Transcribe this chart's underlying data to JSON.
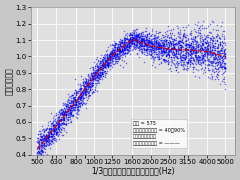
{
  "xlabel": "1/3オクターバンド中心周波数(Hz)",
  "ylabel": "冒管法補正率",
  "freqs": [
    500,
    630,
    800,
    1000,
    1250,
    1600,
    2000,
    2500,
    3150,
    4000,
    5000
  ],
  "mean_line": [
    0.435,
    0.575,
    0.725,
    0.875,
    1.005,
    1.105,
    1.065,
    1.045,
    1.04,
    1.03,
    1.0
  ],
  "spread_low": [
    0.04,
    0.04,
    0.04,
    0.04,
    0.035,
    0.03,
    0.04,
    0.05,
    0.06,
    0.07,
    0.08
  ],
  "spread_high": [
    0.04,
    0.04,
    0.04,
    0.04,
    0.035,
    0.03,
    0.04,
    0.05,
    0.06,
    0.07,
    0.08
  ],
  "ylim": [
    0.4,
    1.3
  ],
  "yticks": [
    0.4,
    0.5,
    0.6,
    0.7,
    0.8,
    0.9,
    1.0,
    1.1,
    1.2,
    1.3
  ],
  "xtick_labels": [
    "500",
    "630",
    "800",
    "1000",
    "1250",
    "1600",
    "2000",
    "2500",
    "3150",
    "4000",
    "5000"
  ],
  "legend_lines": [
    "総数 = 575",
    "相対湿度変化範囲 = 40～90%",
    "温湿度補正：有り",
    "相対湿度許容差分 = ―――"
  ],
  "line_color": "#cc0000",
  "fill_color": "#0000ee",
  "background": "#e0e0e0",
  "grid_color": "#ffffff",
  "fontsize": 5.5,
  "tick_fontsize": 5.0,
  "n_samples": 575
}
